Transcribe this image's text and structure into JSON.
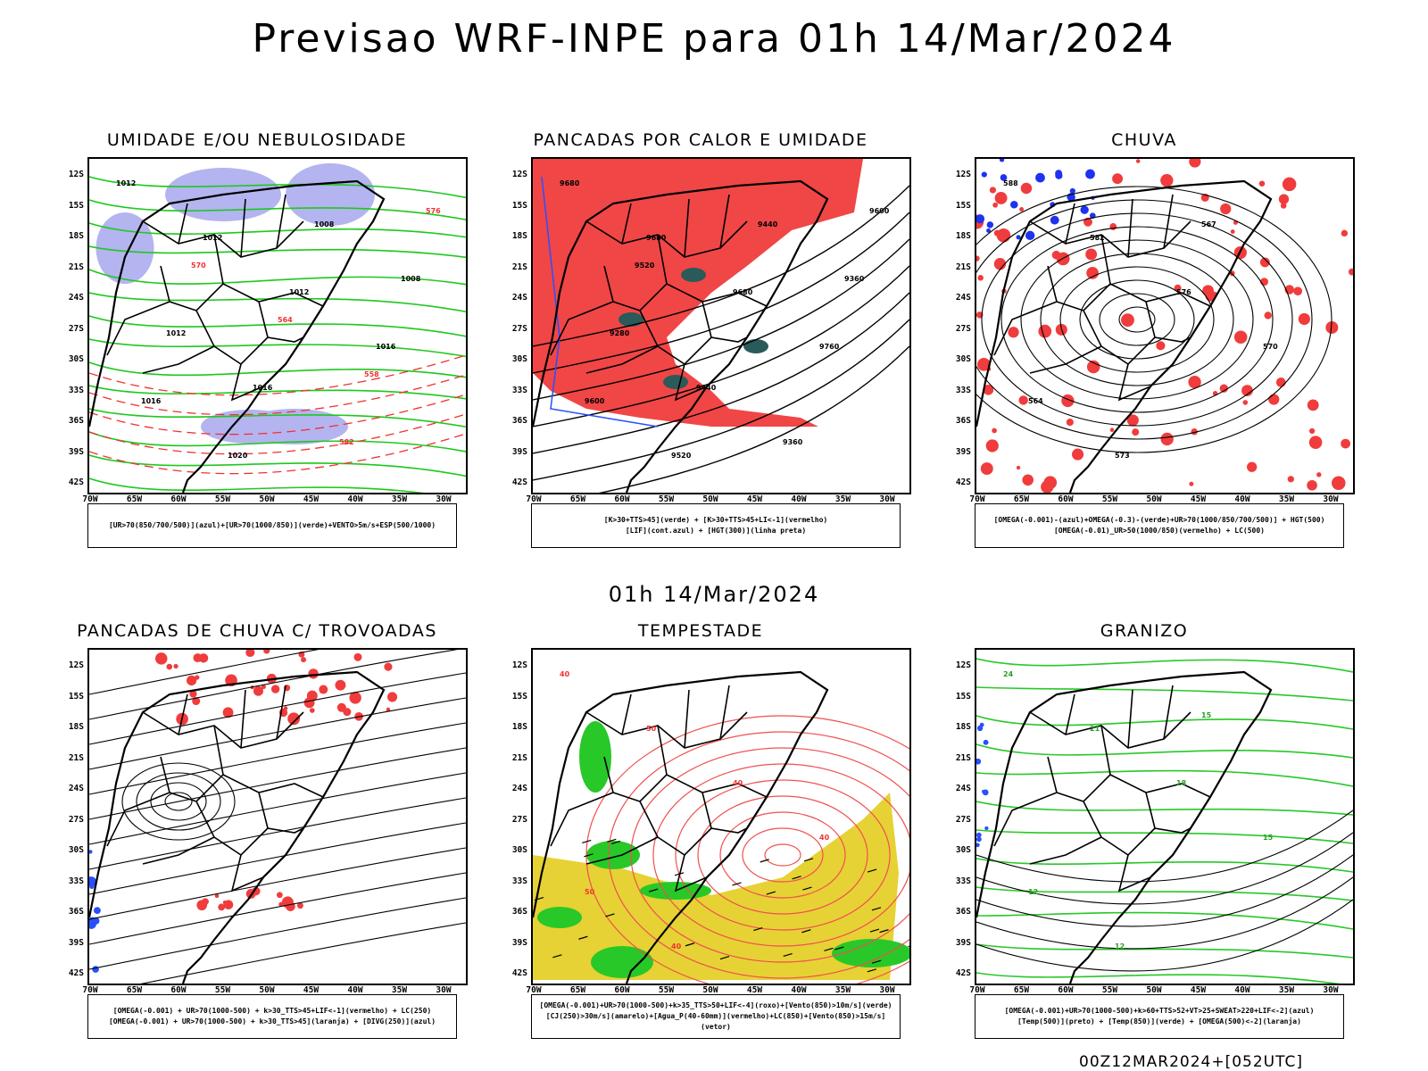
{
  "header": {
    "title": "Previsao WRF-INPE  para 01h 14/Mar/2024",
    "mid_title": "01h 14/Mar/2024",
    "footer": "00Z12MAR2024+[052UTC]"
  },
  "axes": {
    "lat_labels": [
      "12S",
      "15S",
      "18S",
      "21S",
      "24S",
      "27S",
      "30S",
      "33S",
      "36S",
      "39S",
      "42S"
    ],
    "lon_labels": [
      "70W",
      "65W",
      "60W",
      "55W",
      "50W",
      "45W",
      "40W",
      "35W",
      "30W"
    ]
  },
  "panels": [
    {
      "title": "UMIDADE E/OU NEBULOSIDADE",
      "legend": [
        "[UR>70(850/700/500)](azul)+[UR>70(1000/850)](verde)+VENTO>5m/s+ESP(500/1000)"
      ],
      "contour_labels": [
        "1012",
        "1012",
        "1012",
        "1016",
        "1016",
        "1020",
        "1008",
        "1008",
        "1012",
        "1016",
        "582",
        "576",
        "570",
        "564",
        "558"
      ]
    },
    {
      "title": "PANCADAS POR CALOR E UMIDADE",
      "legend": [
        "[K>30+TTS>45](verde) + [K>30+TTS>45+LI<-1](vermelho)",
        "[LIF](cont.azul) + [HGT(300)](linha preta)"
      ],
      "contour_labels": [
        "9680",
        "9680",
        "9680",
        "9760",
        "9600",
        "9520",
        "9440",
        "9360",
        "9280",
        "9440",
        "9360",
        "9600",
        "9520"
      ]
    },
    {
      "title": "CHUVA",
      "legend": [
        "[OMEGA(-0.001)-(azul)+OMEGA(-0.3)-(verde)+UR>70(1000/850/700/500)] + HGT(500)",
        "[OMEGA(-0.01)_UR>50(1000/850)(vermelho) + LC(500)"
      ],
      "contour_labels": [
        "588",
        "582",
        "576",
        "570",
        "564",
        "573",
        "567"
      ]
    },
    {
      "title": "PANCADAS DE CHUVA C/ TROVOADAS",
      "legend": [
        "[OMEGA(-0.001) + UR>70(1000-500) + k>30_TTS>45+LIF<-1](vermelho) + LC(250)",
        "[OMEGA(-0.001) + UR>70(1000-500) + k>30_TTS>45](laranja) + [DIVG(250)](azul)"
      ],
      "contour_labels": []
    },
    {
      "title": "TEMPESTADE",
      "legend": [
        "[OMEGA(-0.001)+UR>70(1000-500)+k>35_TTS>50+LIF<-4](roxo)+[Vento(850)>10m/s](verde)",
        "[CJ(250)>30m/s](amarelo)+[Agua_P(40-60mm)](vermelho)+LC(850)+[Vento(850)>15m/s](vetor)"
      ],
      "contour_labels": [
        "40",
        "50",
        "40",
        "40",
        "50",
        "40"
      ]
    },
    {
      "title": "GRANIZO",
      "legend": [
        "[OMEGA(-0.001)+UR>70(1000-500)+k>60+TTS>52+VT>25+SWEAT>220+LIF<-2](azul)",
        "[Temp(500)](preto) + [Temp(850)](verde) + [OMEGA(500)<-2](laranja)"
      ],
      "contour_labels": [
        "24",
        "21",
        "18",
        "15",
        "12",
        "12",
        "15"
      ]
    }
  ]
}
